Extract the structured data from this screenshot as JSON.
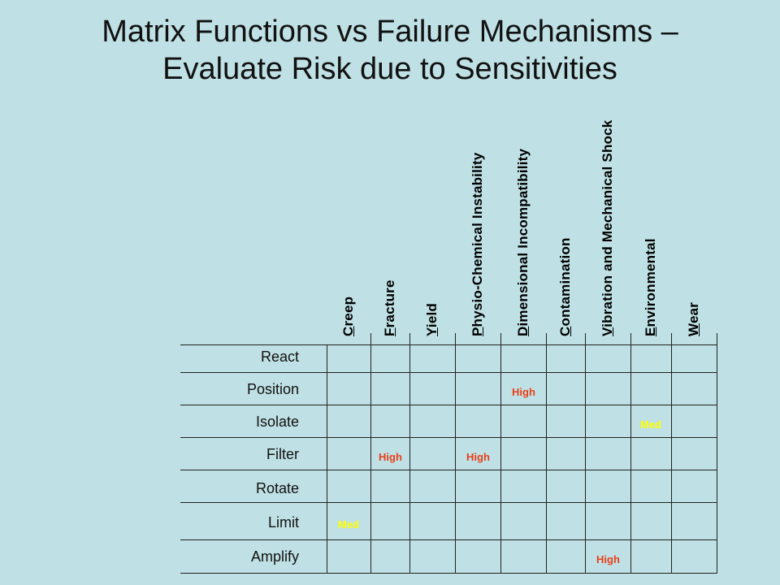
{
  "title": {
    "line1": "Matrix Functions vs Failure Mechanisms –",
    "line2": "Evaluate Risk due to Sensitivities"
  },
  "columns": [
    "Creep",
    "Fracture",
    "Yield",
    "Physio-Chemical Instability",
    "Dimensional Incompatibility",
    "Contamination",
    "Vibration and Mechanical Shock",
    "Environmental",
    "Wear"
  ],
  "rows": [
    "React",
    "Position",
    "Isolate",
    "Filter",
    "Rotate",
    "Limit",
    "Amplify"
  ],
  "cells": [
    {
      "row": "Position",
      "column": "Dimensional Incompatibility",
      "value": "High",
      "level": "high"
    },
    {
      "row": "Isolate",
      "column": "Environmental",
      "value": "Med",
      "level": "med"
    },
    {
      "row": "Filter",
      "column": "Fracture",
      "value": "High",
      "level": "high"
    },
    {
      "row": "Filter",
      "column": "Physio-Chemical Instability",
      "value": "High",
      "level": "high"
    },
    {
      "row": "Limit",
      "column": "Creep",
      "value": "Med",
      "level": "med"
    },
    {
      "row": "Amplify",
      "column": "Vibration and Mechanical Shock",
      "value": "High",
      "level": "high"
    }
  ],
  "colors": {
    "background": "#bfe0e4",
    "high": "#e8401a",
    "med": "#ffff00"
  }
}
